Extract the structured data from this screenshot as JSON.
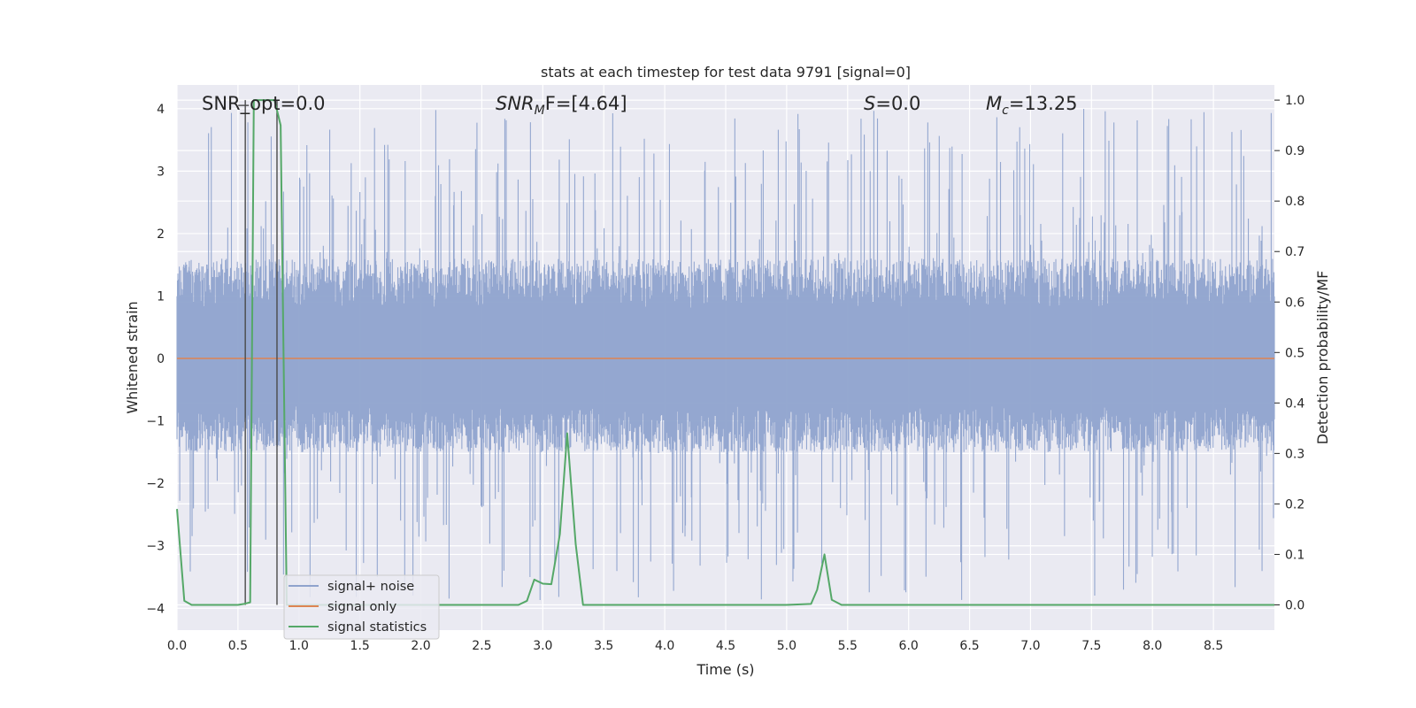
{
  "chart_data": {
    "type": "line",
    "title": "stats at each timestep for test data 9791 [signal=0]",
    "xlabel": "Time (s)",
    "ylabel_left": "Whitened strain",
    "ylabel_right": "Detection probability/MF",
    "xlim": [
      0,
      9
    ],
    "ylim_left": [
      -4.35,
      4.38
    ],
    "ylim_right": [
      -0.05,
      1.03
    ],
    "x_ticks": [
      "0.0",
      "0.5",
      "1.0",
      "1.5",
      "2.0",
      "2.5",
      "3.0",
      "3.5",
      "4.0",
      "4.5",
      "5.0",
      "5.5",
      "6.0",
      "6.5",
      "7.0",
      "7.5",
      "8.0",
      "8.5"
    ],
    "y_ticks_left": [
      "4",
      "3",
      "2",
      "1",
      "0",
      "−1",
      "−2",
      "−3",
      "−4"
    ],
    "y_ticks_right": [
      "1.0",
      "0.9",
      "0.8",
      "0.7",
      "0.6",
      "0.5",
      "0.4",
      "0.3",
      "0.2",
      "0.1",
      "0.0"
    ],
    "annotations": {
      "snr_opt": "SNR_opt=0.0",
      "snr_mf_main": "SNR",
      "snr_mf_sub": "M",
      "snr_mf_rest": "F=[4.64]",
      "s_main": "S",
      "s_rest": "=0.0",
      "mc_main": "M",
      "mc_sub": "c",
      "mc_rest": "=13.25"
    },
    "legend": {
      "position": "lower-left",
      "entries": [
        "signal+ noise",
        "signal only",
        "signal statistics"
      ]
    },
    "grid": true,
    "colors": {
      "signal_noise": "#8fa3cd",
      "signal_only": "#dd8452",
      "signal_statistics": "#55a868",
      "background": "#eaeaf2",
      "grid": "#ffffff",
      "vlines": "#4a4a4a"
    },
    "series": [
      {
        "name": "signal+ noise",
        "axis": "left",
        "kind": "noise",
        "typical_range": [
          -1.5,
          1.6
        ],
        "peak_range": [
          -3.9,
          4.0
        ]
      },
      {
        "name": "signal only",
        "axis": "left",
        "x": [
          0,
          9
        ],
        "y": [
          0,
          0
        ]
      },
      {
        "name": "signal statistics",
        "axis": "right",
        "x": [
          0.0,
          0.06,
          0.12,
          0.2,
          0.3,
          0.4,
          0.5,
          0.55,
          0.6,
          0.63,
          0.7,
          0.8,
          0.85,
          0.9,
          1.0,
          1.5,
          2.0,
          2.5,
          2.8,
          2.87,
          2.93,
          3.0,
          3.07,
          3.14,
          3.2,
          3.27,
          3.33,
          3.4,
          4.0,
          4.5,
          5.0,
          5.2,
          5.25,
          5.31,
          5.37,
          5.45,
          5.6,
          6.0,
          7.0,
          8.0,
          9.0
        ],
        "y": [
          0.19,
          0.008,
          0.0,
          0.0,
          0.0,
          0.0,
          0.0,
          0.002,
          0.005,
          1.0,
          1.0,
          1.0,
          0.95,
          0.0,
          0.0,
          0.0,
          0.0,
          0.0,
          0.0,
          0.008,
          0.05,
          0.042,
          0.041,
          0.14,
          0.34,
          0.12,
          0.0,
          0.0,
          0.0,
          0.0,
          0.0,
          0.002,
          0.03,
          0.1,
          0.01,
          0.0,
          0.0,
          0.0,
          0.0,
          0.0,
          0.0
        ]
      }
    ],
    "vertical_lines": [
      0.56,
      0.82
    ]
  }
}
